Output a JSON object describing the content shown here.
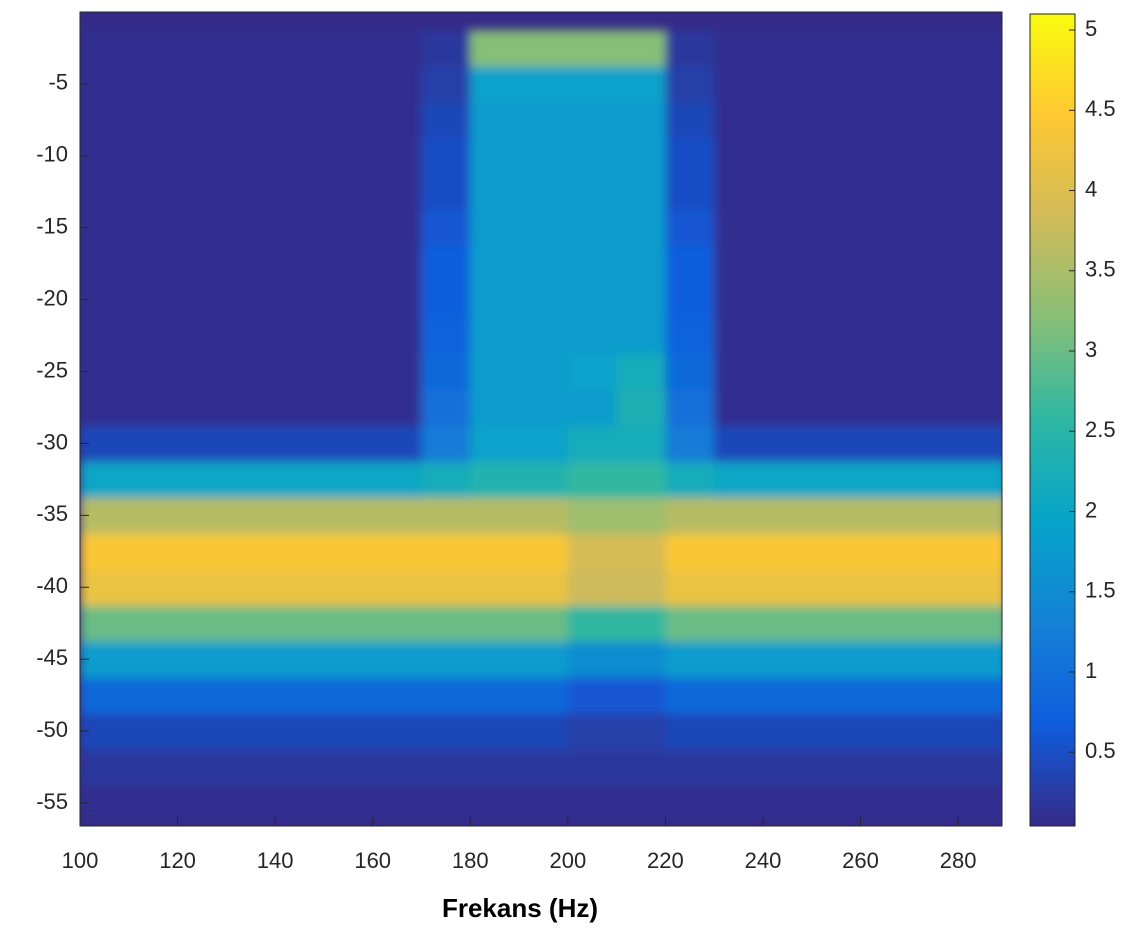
{
  "chart_data": {
    "type": "heatmap",
    "x_label": "Frekans (Hz)",
    "x": [
      105,
      115,
      125,
      135,
      145,
      155,
      165,
      175,
      185,
      195,
      205,
      215,
      225,
      235,
      245,
      255,
      265,
      275,
      285
    ],
    "y": [
      -55,
      -52.5,
      -50,
      -47.5,
      -45,
      -42.5,
      -40,
      -37.5,
      -35,
      -32.5,
      -30,
      -27.5,
      -25,
      -22.5,
      -20,
      -17.5,
      -15,
      -12.5,
      -10,
      -7.5,
      -5,
      -2.5
    ],
    "z": [
      [
        0.1,
        0.1,
        0.1,
        0.1,
        0.1,
        0.1,
        0.1,
        0.1,
        0.1,
        0.1,
        0.1,
        0.1,
        0.1,
        0.1,
        0.1,
        0.1,
        0.1,
        0.1,
        0.1
      ],
      [
        0.2,
        0.2,
        0.2,
        0.2,
        0.2,
        0.2,
        0.2,
        0.2,
        0.2,
        0.2,
        0.2,
        0.2,
        0.2,
        0.2,
        0.2,
        0.2,
        0.2,
        0.2,
        0.2
      ],
      [
        0.4,
        0.4,
        0.4,
        0.4,
        0.4,
        0.4,
        0.4,
        0.4,
        0.4,
        0.4,
        0.3,
        0.3,
        0.4,
        0.4,
        0.4,
        0.4,
        0.4,
        0.4,
        0.4
      ],
      [
        0.9,
        0.9,
        0.9,
        0.9,
        0.9,
        0.9,
        0.9,
        0.9,
        0.9,
        0.9,
        0.6,
        0.6,
        0.9,
        0.9,
        0.9,
        0.9,
        0.9,
        0.9,
        0.9
      ],
      [
        1.8,
        1.8,
        1.8,
        1.8,
        1.8,
        1.8,
        1.8,
        1.8,
        1.8,
        1.8,
        1.5,
        1.5,
        1.8,
        1.8,
        1.8,
        1.8,
        1.8,
        1.8,
        1.8
      ],
      [
        3.0,
        3.0,
        3.0,
        3.0,
        3.0,
        3.0,
        3.0,
        3.0,
        3.0,
        3.0,
        2.6,
        2.6,
        3.0,
        3.0,
        3.0,
        3.0,
        3.0,
        3.0,
        3.0
      ],
      [
        4.2,
        4.2,
        4.2,
        4.2,
        4.2,
        4.2,
        4.2,
        4.2,
        4.2,
        4.2,
        3.8,
        3.8,
        4.2,
        4.2,
        4.2,
        4.2,
        4.2,
        4.2,
        4.2
      ],
      [
        4.4,
        4.4,
        4.4,
        4.4,
        4.4,
        4.4,
        4.4,
        4.4,
        4.4,
        4.4,
        3.9,
        3.9,
        4.4,
        4.4,
        4.4,
        4.4,
        4.4,
        4.4,
        4.4
      ],
      [
        3.6,
        3.6,
        3.6,
        3.6,
        3.6,
        3.6,
        3.6,
        3.6,
        3.6,
        3.6,
        3.4,
        3.4,
        3.6,
        3.6,
        3.6,
        3.6,
        3.6,
        3.6,
        3.6
      ],
      [
        2.0,
        2.0,
        2.0,
        2.0,
        2.0,
        2.0,
        2.0,
        2.2,
        2.4,
        2.4,
        2.6,
        2.6,
        2.2,
        2.0,
        2.0,
        2.0,
        2.0,
        2.0,
        2.0
      ],
      [
        0.4,
        0.4,
        0.4,
        0.4,
        0.4,
        0.4,
        0.4,
        1.2,
        1.9,
        1.9,
        2.2,
        2.2,
        1.2,
        0.4,
        0.4,
        0.4,
        0.4,
        0.4,
        0.4
      ],
      [
        0.1,
        0.1,
        0.1,
        0.1,
        0.1,
        0.1,
        0.1,
        1.0,
        1.8,
        1.8,
        1.8,
        2.3,
        1.0,
        0.1,
        0.1,
        0.1,
        0.1,
        0.1,
        0.1
      ],
      [
        0.1,
        0.1,
        0.1,
        0.1,
        0.1,
        0.1,
        0.1,
        0.9,
        1.8,
        1.8,
        1.9,
        2.2,
        0.9,
        0.1,
        0.1,
        0.1,
        0.1,
        0.1,
        0.1
      ],
      [
        0.1,
        0.1,
        0.1,
        0.1,
        0.1,
        0.1,
        0.1,
        0.8,
        1.8,
        1.8,
        1.8,
        1.8,
        0.8,
        0.1,
        0.1,
        0.1,
        0.1,
        0.1,
        0.1
      ],
      [
        0.1,
        0.1,
        0.1,
        0.1,
        0.1,
        0.1,
        0.1,
        0.7,
        1.8,
        1.8,
        1.8,
        1.8,
        0.7,
        0.1,
        0.1,
        0.1,
        0.1,
        0.1,
        0.1
      ],
      [
        0.1,
        0.1,
        0.1,
        0.1,
        0.1,
        0.1,
        0.1,
        0.7,
        1.8,
        1.8,
        1.8,
        1.8,
        0.7,
        0.1,
        0.1,
        0.1,
        0.1,
        0.1,
        0.1
      ],
      [
        0.1,
        0.1,
        0.1,
        0.1,
        0.1,
        0.1,
        0.1,
        0.6,
        1.8,
        1.8,
        1.8,
        1.8,
        0.6,
        0.1,
        0.1,
        0.1,
        0.1,
        0.1,
        0.1
      ],
      [
        0.1,
        0.1,
        0.1,
        0.1,
        0.1,
        0.1,
        0.1,
        0.5,
        1.8,
        1.8,
        1.8,
        1.8,
        0.5,
        0.1,
        0.1,
        0.1,
        0.1,
        0.1,
        0.1
      ],
      [
        0.1,
        0.1,
        0.1,
        0.1,
        0.1,
        0.1,
        0.1,
        0.5,
        1.8,
        1.8,
        1.8,
        1.8,
        0.5,
        0.1,
        0.1,
        0.1,
        0.1,
        0.1,
        0.1
      ],
      [
        0.1,
        0.1,
        0.1,
        0.1,
        0.1,
        0.1,
        0.1,
        0.4,
        1.8,
        1.8,
        1.8,
        1.8,
        0.4,
        0.1,
        0.1,
        0.1,
        0.1,
        0.1,
        0.1
      ],
      [
        0.1,
        0.1,
        0.1,
        0.1,
        0.1,
        0.1,
        0.1,
        0.3,
        1.9,
        1.9,
        1.9,
        1.9,
        0.3,
        0.1,
        0.1,
        0.1,
        0.1,
        0.1,
        0.1
      ],
      [
        0.1,
        0.1,
        0.1,
        0.1,
        0.1,
        0.1,
        0.1,
        0.2,
        3.2,
        3.2,
        3.2,
        3.2,
        0.2,
        0.1,
        0.1,
        0.1,
        0.1,
        0.1,
        0.1
      ]
    ],
    "xlim": [
      100,
      289
    ],
    "ylim": [
      -56.6,
      0
    ],
    "xticks": [
      100,
      120,
      140,
      160,
      180,
      200,
      220,
      240,
      260,
      280
    ],
    "yticks": [
      -55,
      -50,
      -45,
      -40,
      -35,
      -30,
      -25,
      -20,
      -15,
      -10,
      -5
    ],
    "clim": [
      0.04,
      5.1
    ],
    "cticks": [
      0.5,
      1,
      1.5,
      2,
      2.5,
      3,
      3.5,
      4,
      4.5,
      5
    ],
    "colormap": [
      "#352a87",
      "#0f5cdd",
      "#1481d6",
      "#06a4ca",
      "#2eb7a4",
      "#87bf77",
      "#d1bb59",
      "#fec832",
      "#f9fb0e"
    ]
  }
}
